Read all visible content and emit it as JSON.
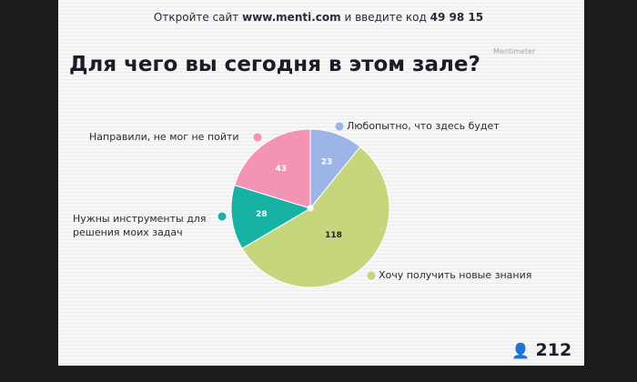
{
  "header": {
    "prefix": "Откройте сайт",
    "site": "www.menti.com",
    "middle": "и введите код",
    "code": "49 98 15"
  },
  "brand": "Mentimeter",
  "participants": 212,
  "chart_data": {
    "type": "pie",
    "title": "Для чего вы сегодня в этом зале?",
    "categories": [
      "Любопытно, что здесь будет",
      "Хочу получить новые знания",
      "Нужны инструменты для решения моих задач",
      "Направили, не мог не пойти"
    ],
    "values": [
      23,
      118,
      28,
      43
    ],
    "colors": [
      "#9db5e6",
      "#c6d67c",
      "#16b3a5",
      "#f493b3"
    ]
  }
}
